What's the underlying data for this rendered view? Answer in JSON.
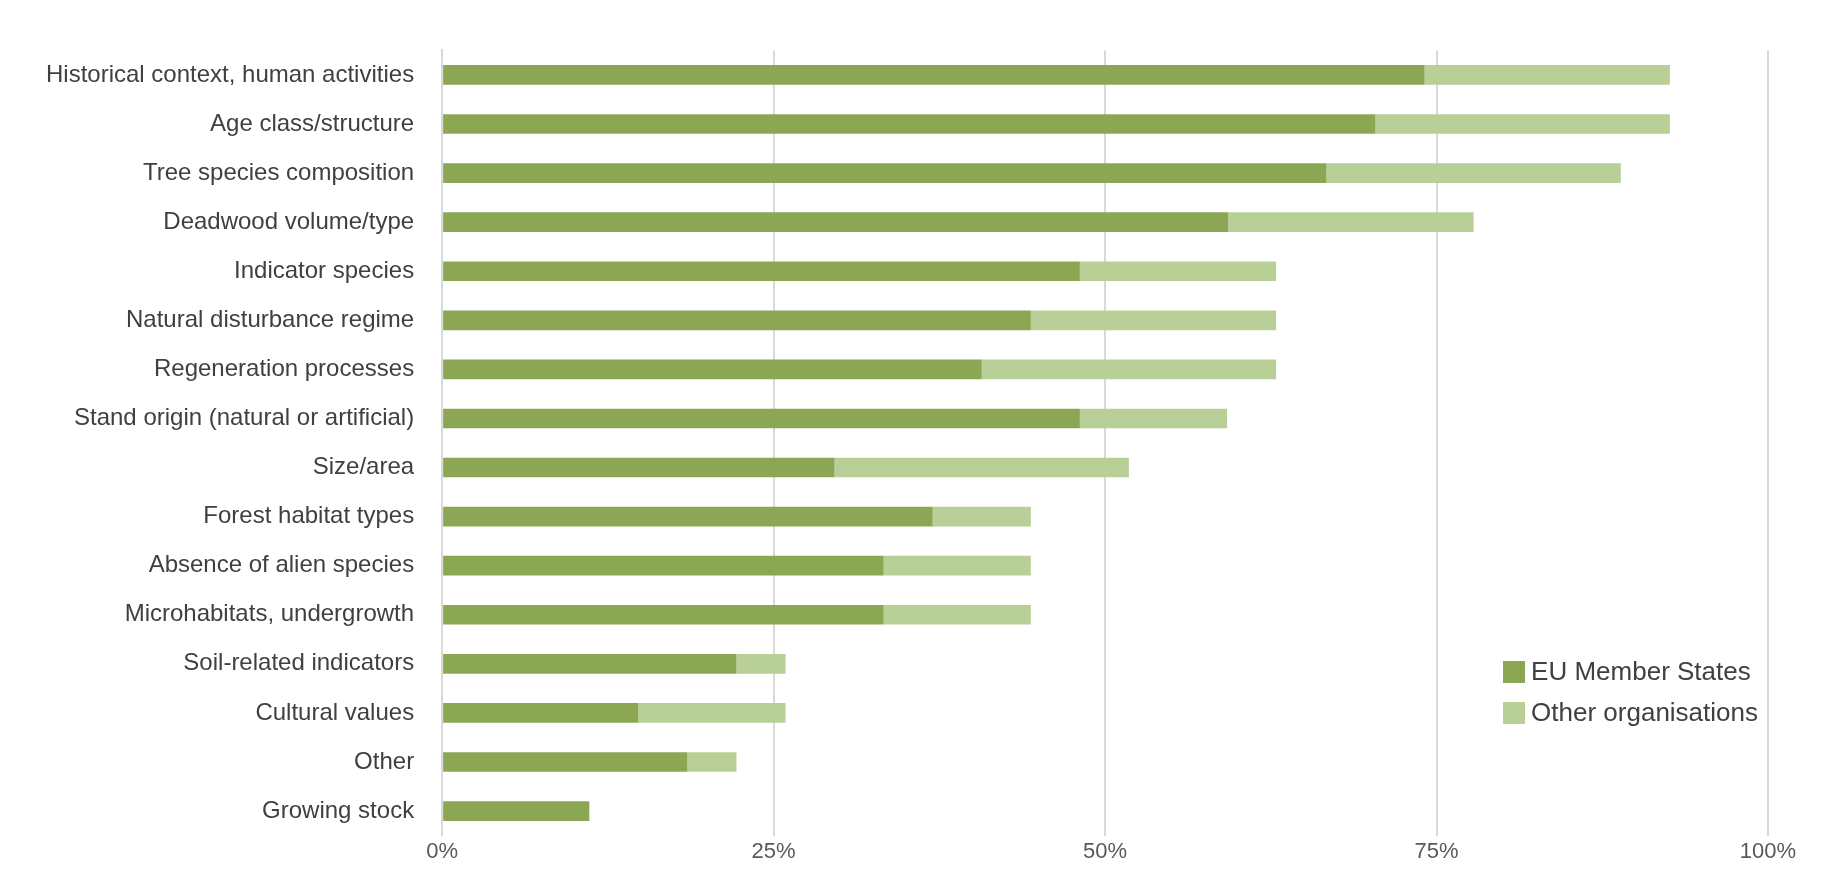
{
  "chart_data": {
    "type": "bar",
    "orientation": "horizontal",
    "stacked": true,
    "categories": [
      "Historical context, human activities",
      "Age class/structure",
      "Tree species composition",
      "Deadwood volume/type",
      "Indicator species",
      "Natural disturbance regime",
      "Regeneration processes",
      "Stand origin (natural or artificial)",
      "Size/area",
      "Forest habitat types",
      "Absence of alien species",
      "Microhabitats, undergrowth",
      "Soil-related indicators",
      "Cultural values",
      "Other",
      "Growing stock"
    ],
    "series": [
      {
        "name": "EU Member States",
        "color": "#8ba753",
        "values": [
          74.1,
          70.4,
          66.7,
          59.3,
          48.1,
          44.4,
          40.7,
          48.1,
          29.6,
          37.0,
          33.3,
          33.3,
          22.2,
          14.8,
          18.5,
          11.1
        ]
      },
      {
        "name": "Other organisations",
        "color": "#b9cf98",
        "values": [
          18.5,
          22.2,
          22.2,
          18.5,
          14.8,
          18.5,
          22.2,
          11.1,
          22.2,
          7.4,
          11.1,
          11.1,
          3.7,
          11.1,
          3.7,
          0
        ]
      }
    ],
    "xlim": [
      0,
      100
    ],
    "xticks": [
      {
        "value": 0,
        "label": "0%"
      },
      {
        "value": 25,
        "label": "25%"
      },
      {
        "value": 50,
        "label": "50%"
      },
      {
        "value": 75,
        "label": "75%"
      },
      {
        "value": 100,
        "label": "100%"
      }
    ],
    "grid": "x",
    "legend": "bottom right"
  }
}
